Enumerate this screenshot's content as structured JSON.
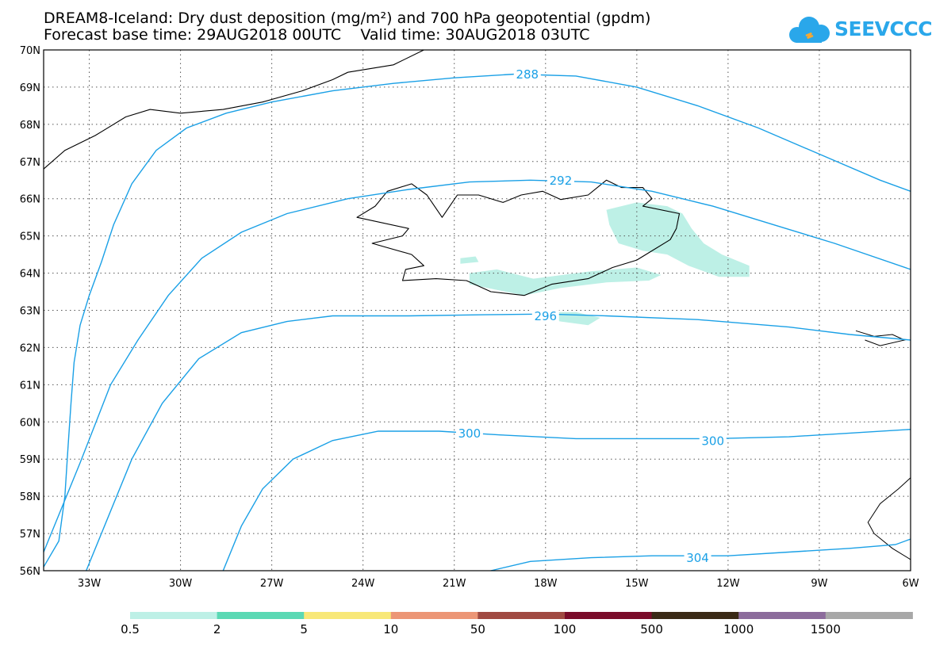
{
  "title_line1": "DREAM8-Iceland: Dry dust deposition (mg/m²) and 700 hPa geopotential (gpdm)",
  "title_line2": "Forecast base time: 29AUG2018 00UTC    Valid time: 30AUG2018 03UTC",
  "logo": {
    "text": "SEEVCCC",
    "icon": "cloud-icon",
    "color": "#2aa7ea"
  },
  "map": {
    "lon_range": [
      -34.5,
      -6
    ],
    "lat_range": [
      56,
      70
    ],
    "lat_labels": [
      "70N",
      "69N",
      "68N",
      "67N",
      "66N",
      "65N",
      "64N",
      "63N",
      "62N",
      "61N",
      "60N",
      "59N",
      "58N",
      "57N",
      "56N"
    ],
    "lon_labels": [
      "33W",
      "30W",
      "27W",
      "24W",
      "21W",
      "18W",
      "15W",
      "12W",
      "9W",
      "6W"
    ],
    "gridlines": "dotted",
    "contour_color": "#1aa0e6",
    "contours": [
      {
        "label": "288",
        "label_lon": -18.6,
        "label_lat": 69.35,
        "points": [
          [
            -34.5,
            56.1
          ],
          [
            -34,
            56.8
          ],
          [
            -33.8,
            58
          ],
          [
            -33.7,
            59.3
          ],
          [
            -33.6,
            60.5
          ],
          [
            -33.5,
            61.6
          ],
          [
            -33.3,
            62.6
          ],
          [
            -33,
            63.4
          ],
          [
            -32.6,
            64.3
          ],
          [
            -32.2,
            65.3
          ],
          [
            -31.6,
            66.4
          ],
          [
            -30.8,
            67.3
          ],
          [
            -29.8,
            67.9
          ],
          [
            -28.5,
            68.3
          ],
          [
            -27,
            68.6
          ],
          [
            -25,
            68.9
          ],
          [
            -23,
            69.1
          ],
          [
            -21,
            69.25
          ],
          [
            -19,
            69.35
          ],
          [
            -17,
            69.3
          ],
          [
            -15,
            69
          ],
          [
            -13,
            68.5
          ],
          [
            -11,
            67.9
          ],
          [
            -9,
            67.2
          ],
          [
            -7,
            66.5
          ],
          [
            -6,
            66.2
          ]
        ]
      },
      {
        "label": "292",
        "label_lon": -17.5,
        "label_lat": 66.5,
        "points": [
          [
            -34.5,
            56.5
          ],
          [
            -33.3,
            58.9
          ],
          [
            -32.3,
            61
          ],
          [
            -31.4,
            62.2
          ],
          [
            -30.4,
            63.4
          ],
          [
            -29.3,
            64.4
          ],
          [
            -28,
            65.1
          ],
          [
            -26.5,
            65.6
          ],
          [
            -24.5,
            66
          ],
          [
            -22.5,
            66.25
          ],
          [
            -20.5,
            66.45
          ],
          [
            -18.5,
            66.5
          ],
          [
            -16.5,
            66.45
          ],
          [
            -14.5,
            66.2
          ],
          [
            -12.5,
            65.8
          ],
          [
            -10.5,
            65.3
          ],
          [
            -8.5,
            64.8
          ],
          [
            -6,
            64.1
          ]
        ]
      },
      {
        "label": "296",
        "label_lon": -18.0,
        "label_lat": 62.85,
        "points": [
          [
            -33.1,
            56
          ],
          [
            -32.5,
            57.2
          ],
          [
            -31.6,
            59
          ],
          [
            -30.6,
            60.5
          ],
          [
            -29.4,
            61.7
          ],
          [
            -28,
            62.4
          ],
          [
            -26.5,
            62.7
          ],
          [
            -25,
            62.85
          ],
          [
            -22.5,
            62.85
          ],
          [
            -20,
            62.88
          ],
          [
            -18,
            62.9
          ],
          [
            -16,
            62.85
          ],
          [
            -13,
            62.75
          ],
          [
            -10,
            62.55
          ],
          [
            -8,
            62.35
          ],
          [
            -6,
            62.2
          ]
        ]
      },
      {
        "label": "300",
        "label_lon": -20.5,
        "label_lat": 59.7,
        "points": [
          [
            -28.6,
            56
          ],
          [
            -28,
            57.2
          ],
          [
            -27.3,
            58.2
          ],
          [
            -26.3,
            59
          ],
          [
            -25,
            59.5
          ],
          [
            -23.5,
            59.75
          ],
          [
            -21.5,
            59.75
          ],
          [
            -19.5,
            59.65
          ],
          [
            -17,
            59.55
          ],
          [
            -15,
            59.55
          ],
          [
            -12.5,
            59.55
          ],
          [
            -10,
            59.6
          ],
          [
            -8,
            59.7
          ],
          [
            -6,
            59.8
          ]
        ]
      },
      {
        "label": "300",
        "label_lon": -12.5,
        "label_lat": 59.5,
        "points": []
      },
      {
        "label": "304",
        "label_lon": -13.0,
        "label_lat": 56.35,
        "points": [
          [
            -19.8,
            56
          ],
          [
            -18.5,
            56.25
          ],
          [
            -16.5,
            56.35
          ],
          [
            -14.5,
            56.4
          ],
          [
            -12,
            56.4
          ],
          [
            -10,
            56.5
          ],
          [
            -8,
            56.6
          ],
          [
            -6.5,
            56.7
          ],
          [
            -6,
            56.85
          ]
        ]
      }
    ],
    "iceland_outline": [
      [
        -22.7,
        63.8
      ],
      [
        -22.6,
        64.1
      ],
      [
        -22,
        64.2
      ],
      [
        -22.4,
        64.5
      ],
      [
        -23.7,
        64.8
      ],
      [
        -22.7,
        65
      ],
      [
        -22.5,
        65.2
      ],
      [
        -24.2,
        65.5
      ],
      [
        -23.6,
        65.8
      ],
      [
        -23.2,
        66.2
      ],
      [
        -22.4,
        66.4
      ],
      [
        -21.9,
        66.1
      ],
      [
        -21.4,
        65.5
      ],
      [
        -20.9,
        66.1
      ],
      [
        -20.2,
        66.1
      ],
      [
        -19.4,
        65.9
      ],
      [
        -18.8,
        66.1
      ],
      [
        -18.1,
        66.2
      ],
      [
        -17.5,
        65.98
      ],
      [
        -16.6,
        66.1
      ],
      [
        -16,
        66.5
      ],
      [
        -15.5,
        66.3
      ],
      [
        -14.8,
        66.3
      ],
      [
        -14.5,
        66
      ],
      [
        -14.8,
        65.8
      ],
      [
        -13.6,
        65.6
      ],
      [
        -13.7,
        65.2
      ],
      [
        -13.9,
        64.9
      ],
      [
        -14.5,
        64.6
      ],
      [
        -15,
        64.35
      ],
      [
        -15.8,
        64.15
      ],
      [
        -16.6,
        63.85
      ],
      [
        -17.8,
        63.7
      ],
      [
        -18.7,
        63.4
      ],
      [
        -19.8,
        63.5
      ],
      [
        -20.6,
        63.8
      ],
      [
        -21.6,
        63.85
      ],
      [
        -22.7,
        63.8
      ]
    ],
    "greenland_coast": [
      [
        -34.5,
        66.8
      ],
      [
        -33.8,
        67.3
      ],
      [
        -32.8,
        67.7
      ],
      [
        -31.8,
        68.2
      ],
      [
        -31,
        68.4
      ],
      [
        -30,
        68.3
      ],
      [
        -28.6,
        68.4
      ],
      [
        -27.3,
        68.6
      ],
      [
        -26,
        68.9
      ],
      [
        -25,
        69.2
      ],
      [
        -24.5,
        69.4
      ],
      [
        -23,
        69.6
      ],
      [
        -22,
        70
      ]
    ],
    "dust_color": "#bdf0e6",
    "dust_patches": [
      [
        [
          -16,
          65.7
        ],
        [
          -15,
          65.9
        ],
        [
          -14,
          65.8
        ],
        [
          -13.5,
          65.6
        ],
        [
          -13.2,
          65.2
        ],
        [
          -12.8,
          64.8
        ],
        [
          -12.2,
          64.5
        ],
        [
          -11.3,
          64.2
        ],
        [
          -11.3,
          63.9
        ],
        [
          -12.3,
          63.9
        ],
        [
          -13.3,
          64.2
        ],
        [
          -14,
          64.5
        ],
        [
          -14.8,
          64.6
        ],
        [
          -15.6,
          64.8
        ],
        [
          -15.9,
          65.3
        ]
      ],
      [
        [
          -20.8,
          64.4
        ],
        [
          -20.3,
          64.45
        ],
        [
          -20.2,
          64.3
        ],
        [
          -20.8,
          64.25
        ]
      ],
      [
        [
          -20.5,
          64
        ],
        [
          -19.6,
          64.1
        ],
        [
          -18.4,
          63.85
        ],
        [
          -16.5,
          64.05
        ],
        [
          -15,
          64.15
        ],
        [
          -14.2,
          63.95
        ],
        [
          -14.6,
          63.8
        ],
        [
          -16,
          63.75
        ],
        [
          -17.5,
          63.6
        ],
        [
          -18.7,
          63.4
        ],
        [
          -19.6,
          63.55
        ],
        [
          -20.5,
          63.7
        ]
      ],
      [
        [
          -18.2,
          62.95
        ],
        [
          -17,
          62.95
        ],
        [
          -16.2,
          62.8
        ],
        [
          -16.6,
          62.6
        ],
        [
          -17.5,
          62.7
        ],
        [
          -18.2,
          62.8
        ]
      ]
    ]
  },
  "legend": {
    "labels": [
      "0.5",
      "2",
      "5",
      "10",
      "50",
      "100",
      "500",
      "1000",
      "1500"
    ],
    "colors": [
      "#bdf0e6",
      "#5ad9b4",
      "#f8e878",
      "#ec9676",
      "#a04a42",
      "#7a0c2a",
      "#3a2a16",
      "#8c6c9c",
      "#a8a8a8"
    ]
  }
}
